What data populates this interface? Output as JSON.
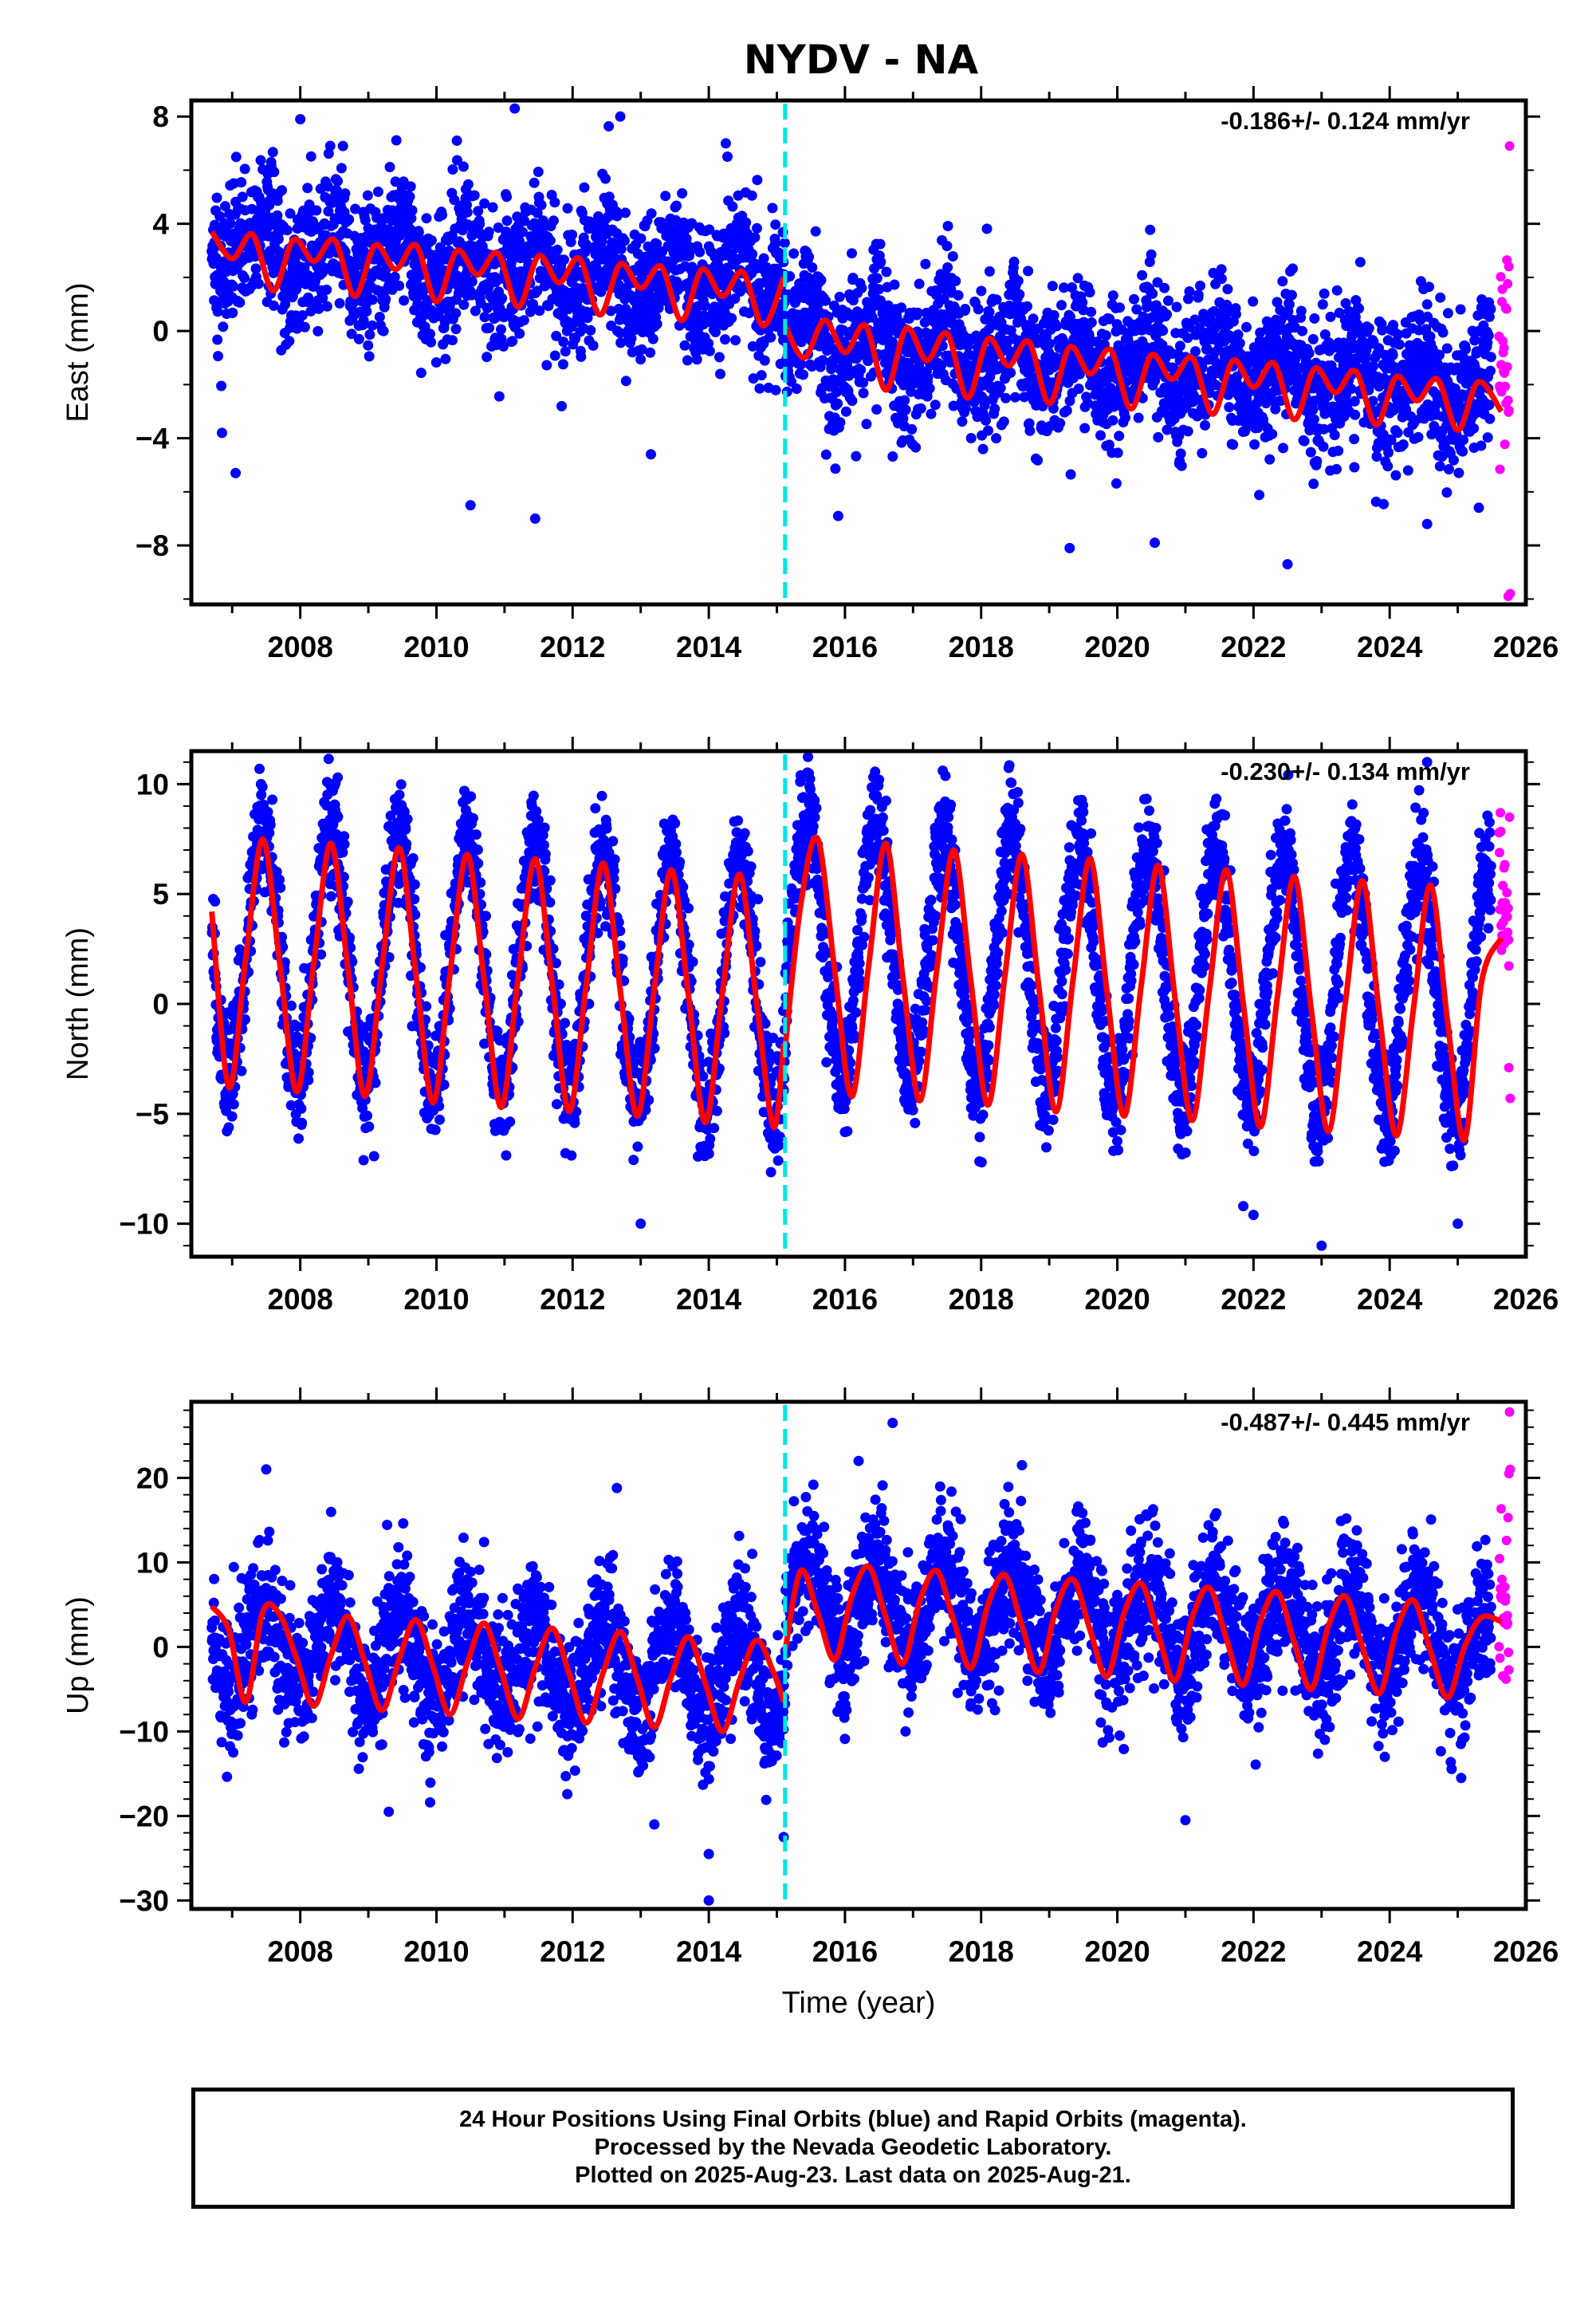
{
  "title": "NYDV - NA",
  "colors": {
    "final_orbits": "#0000ff",
    "rapid_orbits": "#ff00ff",
    "model": "#ff0000",
    "offset_line": "#00e5e5"
  },
  "caption": {
    "line1": "24 Hour Positions Using Final Orbits (blue) and Rapid Orbits (magenta).",
    "line2": "Processed by the Nevada Geodetic Laboratory.",
    "line3": "Plotted on 2025-Aug-23. Last data on 2025-Aug-21."
  },
  "chart_data": [
    {
      "type": "scatter",
      "ylabel": "East (mm)",
      "xlabel": "",
      "rate": "-0.186+/- 0.124 mm/yr",
      "xlim": [
        2006.4,
        2026.0
      ],
      "ylim": [
        -10.2,
        8.6
      ],
      "xticks": [
        2008,
        2010,
        2012,
        2014,
        2016,
        2018,
        2020,
        2022,
        2024,
        2026
      ],
      "yticks": [
        8,
        4,
        0,
        -4,
        -8
      ],
      "ytick_labels": [
        "8",
        "4",
        "0",
        "−4",
        "−8"
      ],
      "offset_epoch": 2015.12,
      "data_start": 2006.7,
      "data_end": 2025.64,
      "rapid_start": 2025.49,
      "model": {
        "pre_offset_level": 2.4,
        "post_offset_level": -1.2,
        "rate_mm_per_yr": -0.186,
        "annual_amplitude": 0.9,
        "semiannual_amplitude": 0.35,
        "scatter_sd": 1.3
      },
      "model_segments": [
        {
          "x": [
            2006.7,
            2007.0,
            2007.3,
            2007.6,
            2007.9,
            2008.2,
            2008.5,
            2008.8,
            2009.1,
            2009.4,
            2009.7,
            2010.0,
            2010.3,
            2010.6,
            2010.9,
            2011.2,
            2011.5,
            2011.8,
            2012.1,
            2012.4,
            2012.7,
            2013.0,
            2013.3,
            2013.6,
            2013.9,
            2014.2,
            2014.5,
            2014.8,
            2015.1
          ],
          "y": [
            3.7,
            2.7,
            3.6,
            1.5,
            3.4,
            2.6,
            3.4,
            1.3,
            3.2,
            2.3,
            3.2,
            1.1,
            3.0,
            2.1,
            2.9,
            0.9,
            2.8,
            1.8,
            2.7,
            0.6,
            2.5,
            1.6,
            2.4,
            0.4,
            2.3,
            1.3,
            2.2,
            0.2,
            2.0
          ]
        },
        {
          "x": [
            2015.12,
            2015.4,
            2015.7,
            2016.0,
            2016.3,
            2016.6,
            2016.9,
            2017.2,
            2017.5,
            2017.8,
            2018.1,
            2018.4,
            2018.7,
            2019.0,
            2019.3,
            2019.6,
            2019.9,
            2020.2,
            2020.5,
            2020.8,
            2021.1,
            2021.4,
            2021.7,
            2022.0,
            2022.3,
            2022.6,
            2022.9,
            2023.2,
            2023.5,
            2023.8,
            2024.1,
            2024.4,
            2024.7,
            2025.0,
            2025.3,
            2025.64
          ],
          "y": [
            0.2,
            -1.0,
            0.4,
            -0.8,
            0.2,
            -2.2,
            0.1,
            -1.1,
            -0.1,
            -2.5,
            -0.3,
            -1.3,
            -0.4,
            -2.7,
            -0.6,
            -1.6,
            -0.7,
            -2.9,
            -0.9,
            -1.8,
            -1.0,
            -3.1,
            -1.1,
            -2.1,
            -1.2,
            -3.3,
            -1.4,
            -2.3,
            -1.5,
            -3.5,
            -1.7,
            -2.6,
            -1.8,
            -3.7,
            -1.9,
            -3.0
          ]
        }
      ],
      "outliers": [
        {
          "x": 2006.85,
          "y": -3.8
        },
        {
          "x": 2007.05,
          "y": -5.3
        },
        {
          "x": 2010.5,
          "y": -6.5
        },
        {
          "x": 2011.45,
          "y": -7.0
        },
        {
          "x": 2013.15,
          "y": -4.6
        },
        {
          "x": 2011.15,
          "y": 8.3
        },
        {
          "x": 2012.7,
          "y": 8.0
        },
        {
          "x": 2008.0,
          "y": 7.9
        },
        {
          "x": 2019.3,
          "y": -8.1
        },
        {
          "x": 2020.55,
          "y": -7.9
        },
        {
          "x": 2022.5,
          "y": -8.7
        },
        {
          "x": 2015.9,
          "y": -6.9
        },
        {
          "x": 2024.55,
          "y": -7.2
        },
        {
          "x": 2010.3,
          "y": 7.1
        },
        {
          "x": 2014.25,
          "y": 7.0
        }
      ],
      "rapid_extremes": [
        {
          "x": 2025.62,
          "y": 6.9
        },
        {
          "x": 2025.63,
          "y": -9.8
        },
        {
          "x": 2025.6,
          "y": -9.9
        },
        {
          "x": 2025.61,
          "y": 2.4
        }
      ]
    },
    {
      "type": "scatter",
      "ylabel": "North (mm)",
      "xlabel": "",
      "rate": "-0.230+/- 0.134 mm/yr",
      "xlim": [
        2006.4,
        2026.0
      ],
      "ylim": [
        -11.5,
        11.5
      ],
      "xticks": [
        2008,
        2010,
        2012,
        2014,
        2016,
        2018,
        2020,
        2022,
        2024,
        2026
      ],
      "yticks": [
        10,
        5,
        0,
        -5,
        -10
      ],
      "ytick_labels": [
        "10",
        "5",
        "0",
        "−5",
        "−10"
      ],
      "offset_epoch": 2015.12,
      "data_start": 2006.7,
      "data_end": 2025.64,
      "rapid_start": 2025.49,
      "model": {
        "pre_offset_level": 1.7,
        "post_offset_level": 1.5,
        "rate_mm_per_yr": -0.23,
        "annual_amplitude": 5.8,
        "semiannual_amplitude": 0.0,
        "scatter_sd": 1.3
      },
      "model_segments": [
        {
          "x": [
            2006.7,
            2006.95,
            2007.2,
            2007.45,
            2007.7,
            2007.95,
            2008.2,
            2008.45,
            2008.7,
            2008.95,
            2009.2,
            2009.45,
            2009.7,
            2009.95,
            2010.2,
            2010.45,
            2010.7,
            2010.95,
            2011.2,
            2011.45,
            2011.7,
            2011.95,
            2012.2,
            2012.45,
            2012.7,
            2012.95,
            2013.2,
            2013.45,
            2013.7,
            2013.95,
            2014.2,
            2014.45,
            2014.7,
            2014.95,
            2015.1
          ],
          "y": [
            4.2,
            -3.8,
            2.1,
            7.5,
            1.8,
            -4.0,
            1.9,
            7.3,
            1.6,
            -4.2,
            1.7,
            7.1,
            1.3,
            -4.5,
            1.4,
            6.8,
            1.1,
            -4.7,
            1.2,
            6.6,
            0.9,
            -4.9,
            0.9,
            6.4,
            0.6,
            -5.1,
            0.7,
            6.1,
            0.4,
            -5.4,
            0.5,
            5.9,
            0.1,
            -5.6,
            -1.8
          ]
        },
        {
          "x": [
            2015.12,
            2015.35,
            2015.6,
            2015.85,
            2016.1,
            2016.35,
            2016.6,
            2016.85,
            2017.1,
            2017.35,
            2017.6,
            2017.85,
            2018.1,
            2018.35,
            2018.6,
            2018.85,
            2019.1,
            2019.35,
            2019.6,
            2019.85,
            2020.1,
            2020.35,
            2020.6,
            2020.85,
            2021.1,
            2021.35,
            2021.6,
            2021.85,
            2022.1,
            2022.35,
            2022.6,
            2022.85,
            2023.1,
            2023.35,
            2023.6,
            2023.85,
            2024.1,
            2024.35,
            2024.6,
            2024.85,
            2025.1,
            2025.35,
            2025.64
          ],
          "y": [
            -2.0,
            4.5,
            7.5,
            1.5,
            -4.2,
            1.8,
            7.3,
            1.2,
            -4.4,
            1.6,
            7.0,
            1.0,
            -4.6,
            1.3,
            6.8,
            0.7,
            -4.9,
            1.1,
            6.6,
            0.5,
            -5.1,
            0.8,
            6.3,
            0.2,
            -5.3,
            0.6,
            6.1,
            0.0,
            -5.6,
            0.3,
            5.8,
            -0.3,
            -5.8,
            0.1,
            5.6,
            -0.5,
            -6.0,
            -0.2,
            5.4,
            -0.8,
            -6.2,
            1.0,
            3.0
          ]
        }
      ],
      "outliers": [
        {
          "x": 2013.0,
          "y": -10.0
        },
        {
          "x": 2022.0,
          "y": -9.6
        },
        {
          "x": 2023.0,
          "y": -11.0
        },
        {
          "x": 2021.85,
          "y": -9.2
        },
        {
          "x": 2025.0,
          "y": -10.0
        },
        {
          "x": 2024.55,
          "y": 11.0
        },
        {
          "x": 2008.55,
          "y": 10.3
        },
        {
          "x": 2016.5,
          "y": 10.2
        },
        {
          "x": 2015.35,
          "y": 10.4
        }
      ],
      "rapid_extremes": [
        {
          "x": 2025.62,
          "y": 8.5
        },
        {
          "x": 2025.63,
          "y": -4.3
        },
        {
          "x": 2025.61,
          "y": -2.9
        }
      ]
    },
    {
      "type": "scatter",
      "ylabel": "Up (mm)",
      "xlabel": "Time (year)",
      "rate": "-0.487+/- 0.445 mm/yr",
      "xlim": [
        2006.4,
        2026.0
      ],
      "ylim": [
        -31.0,
        29.0
      ],
      "xticks": [
        2008,
        2010,
        2012,
        2014,
        2016,
        2018,
        2020,
        2022,
        2024,
        2026
      ],
      "yticks": [
        20,
        10,
        0,
        -10,
        -20,
        -30
      ],
      "ytick_labels": [
        "20",
        "10",
        "0",
        "−10",
        "−20",
        "−30"
      ],
      "offset_epoch": 2015.12,
      "data_start": 2006.7,
      "data_end": 2025.64,
      "rapid_start": 2025.49,
      "model": {
        "pre_offset_level": -1.5,
        "post_offset_level": 3.0,
        "rate_mm_per_yr": -0.487,
        "annual_amplitude": 5.3,
        "semiannual_amplitude": 0.0,
        "scatter_sd": 4.0
      },
      "model_segments": [
        {
          "x": [
            2006.7,
            2006.95,
            2007.2,
            2007.45,
            2007.7,
            2007.95,
            2008.2,
            2008.45,
            2008.7,
            2008.95,
            2009.2,
            2009.45,
            2009.7,
            2009.95,
            2010.2,
            2010.45,
            2010.7,
            2010.95,
            2011.2,
            2011.45,
            2011.7,
            2011.95,
            2012.2,
            2012.45,
            2012.7,
            2012.95,
            2013.2,
            2013.45,
            2013.7,
            2013.95,
            2014.2,
            2014.45,
            2014.7,
            2014.95,
            2015.1
          ],
          "y": [
            4.8,
            2.0,
            -6.5,
            4.2,
            3.8,
            -1.5,
            -7.0,
            -1.0,
            3.6,
            -1.8,
            -7.5,
            -1.5,
            3.2,
            -2.3,
            -8.0,
            -2.0,
            2.8,
            -2.8,
            -8.5,
            -2.5,
            2.2,
            -3.2,
            -9.0,
            -3.0,
            1.8,
            -3.8,
            -9.5,
            -3.5,
            1.2,
            -4.3,
            -10.0,
            -4.0,
            0.8,
            -3.0,
            -6.5
          ]
        },
        {
          "x": [
            2015.12,
            2015.35,
            2015.6,
            2015.85,
            2016.1,
            2016.35,
            2016.6,
            2016.85,
            2017.1,
            2017.35,
            2017.6,
            2017.85,
            2018.1,
            2018.35,
            2018.6,
            2018.85,
            2019.1,
            2019.35,
            2019.6,
            2019.85,
            2020.1,
            2020.35,
            2020.6,
            2020.85,
            2021.1,
            2021.35,
            2021.6,
            2021.85,
            2022.1,
            2022.35,
            2022.6,
            2022.85,
            2023.1,
            2023.35,
            2023.6,
            2023.85,
            2024.1,
            2024.35,
            2024.6,
            2024.85,
            2025.1,
            2025.35,
            2025.64
          ],
          "y": [
            -0.5,
            9.0,
            4.0,
            -1.5,
            6.0,
            9.5,
            3.5,
            -2.0,
            5.5,
            9.0,
            3.0,
            -2.5,
            5.0,
            8.5,
            2.5,
            -3.0,
            4.5,
            8.0,
            2.0,
            -3.5,
            4.0,
            7.5,
            1.5,
            -4.0,
            3.5,
            7.0,
            1.0,
            -4.5,
            3.0,
            6.5,
            0.5,
            -5.0,
            2.5,
            6.0,
            0.0,
            -5.5,
            2.0,
            5.5,
            -0.5,
            -6.0,
            0.0,
            3.5,
            3.0
          ]
        }
      ],
      "outliers": [
        {
          "x": 2014.0,
          "y": -30.0
        },
        {
          "x": 2014.0,
          "y": -24.5
        },
        {
          "x": 2015.1,
          "y": -22.5
        },
        {
          "x": 2013.2,
          "y": -21.0
        },
        {
          "x": 2021.0,
          "y": -20.5
        },
        {
          "x": 2016.7,
          "y": 26.5
        },
        {
          "x": 2007.5,
          "y": 21.0
        },
        {
          "x": 2016.2,
          "y": 22.0
        },
        {
          "x": 2018.6,
          "y": 21.5
        },
        {
          "x": 2012.65,
          "y": 18.8
        },
        {
          "x": 2009.3,
          "y": -19.5
        }
      ],
      "rapid_extremes": [
        {
          "x": 2025.62,
          "y": 27.8
        },
        {
          "x": 2025.63,
          "y": 21.0
        },
        {
          "x": 2025.61,
          "y": 20.5
        }
      ]
    }
  ]
}
